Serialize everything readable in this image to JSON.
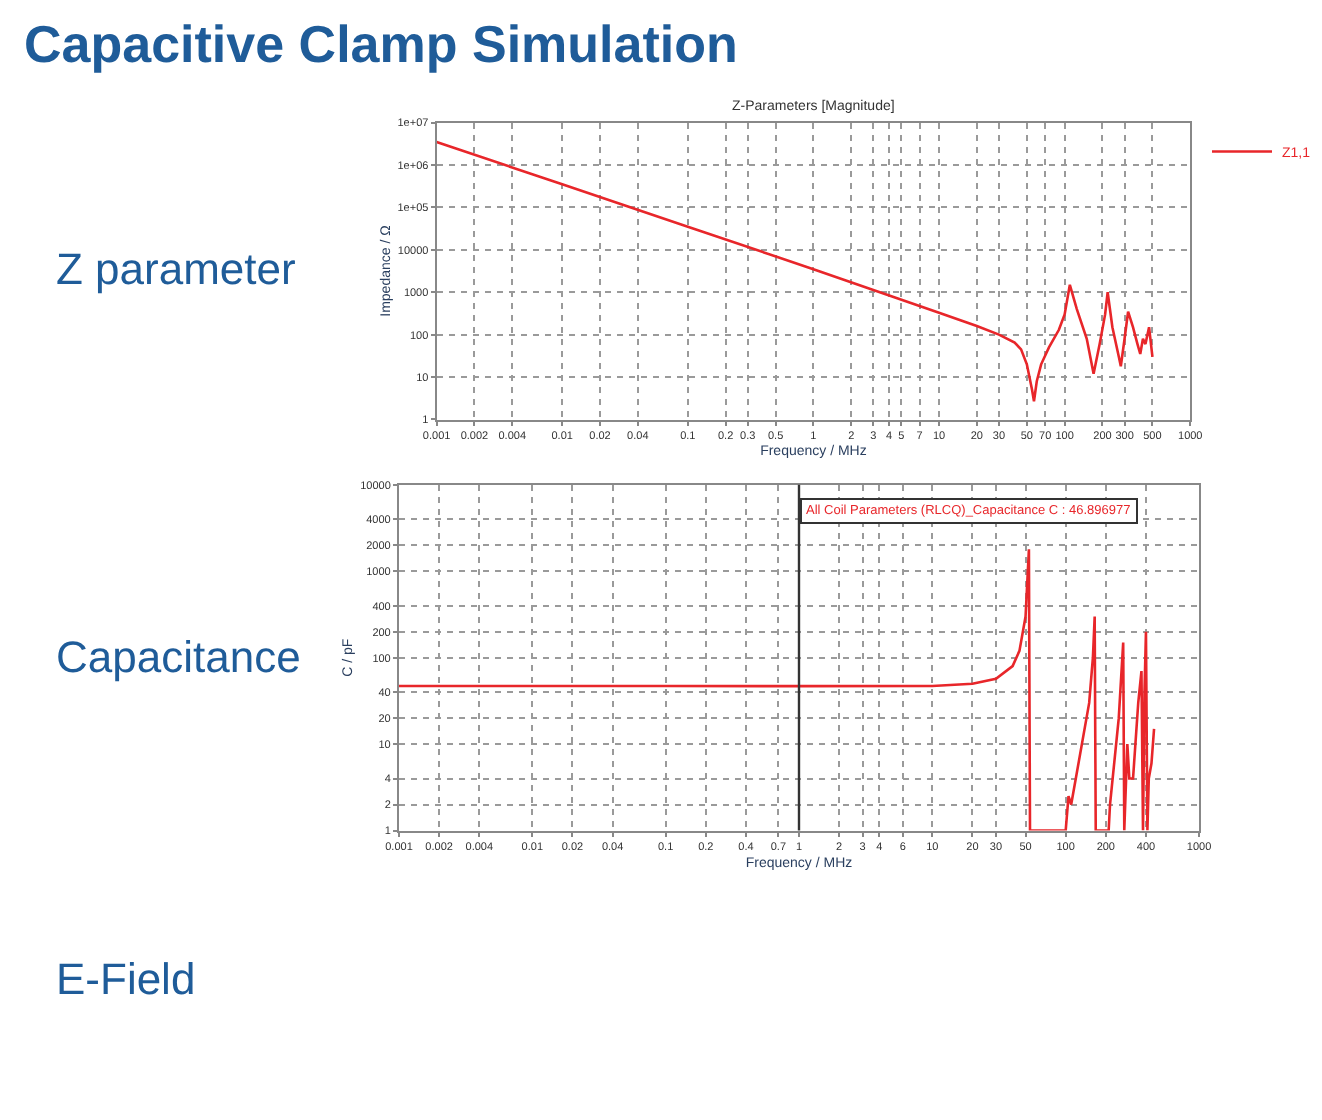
{
  "chart_data": [
    {
      "type": "other",
      "title": "Capacitive Clamp Simulation",
      "annotations": [
        "Z parameter",
        "Capacitance",
        "E-Field"
      ]
    },
    {
      "type": "line",
      "title": "Z-Parameters [Magnitude]",
      "xlabel": "Frequency / MHz",
      "ylabel": "Impedance / Ω",
      "log": "xy",
      "grid": true,
      "legend": "top right",
      "line_style": "solid",
      "xlim": [
        0.001,
        1000
      ],
      "ylim": [
        1,
        10000000
      ],
      "xticks": [
        0.001,
        0.002,
        0.004,
        0.01,
        0.02,
        0.04,
        0.1,
        0.2,
        0.3,
        0.5,
        1,
        2,
        3,
        4,
        5,
        7,
        10,
        20,
        30,
        50,
        70,
        100,
        200,
        300,
        500,
        1000
      ],
      "yticks": [
        1,
        10,
        100,
        1000,
        10000,
        {
          "value": 100000,
          "label": "1e+05"
        },
        {
          "value": 1000000,
          "label": "1e+06"
        },
        {
          "value": 10000000,
          "label": "1e+07"
        }
      ],
      "x": [
        0.001,
        0.01,
        0.1,
        1,
        10,
        20,
        30,
        40,
        45,
        50,
        55,
        57,
        60,
        65,
        75,
        90,
        100,
        110,
        125,
        150,
        170,
        190,
        210,
        220,
        240,
        270,
        280,
        300,
        320,
        350,
        380,
        400,
        420,
        440,
        470,
        500
      ],
      "series": [
        {
          "name": "Z1,1",
          "color": "#e8262a",
          "values": [
            3500000,
            350000,
            35000,
            3500,
            330,
            160,
            100,
            65,
            45,
            20,
            5,
            2.7,
            8,
            20,
            50,
            130,
            300,
            1500,
            400,
            80,
            12,
            60,
            300,
            1000,
            150,
            30,
            18,
            80,
            350,
            150,
            60,
            35,
            80,
            60,
            150,
            30
          ]
        }
      ]
    },
    {
      "type": "line",
      "xlabel": "Frequency / MHz",
      "ylabel": "C / pF",
      "log": "xy",
      "grid": true,
      "line_style": "solid",
      "xlim": [
        0.001,
        1000
      ],
      "ylim": [
        1,
        10000
      ],
      "xticks": [
        0.001,
        0.002,
        0.004,
        0.01,
        0.02,
        0.04,
        0.1,
        0.2,
        0.4,
        0.7,
        1,
        2,
        3,
        4,
        6,
        10,
        20,
        30,
        50,
        100,
        200,
        400,
        1000
      ],
      "yticks": [
        1,
        2,
        4,
        10,
        20,
        40,
        100,
        200,
        400,
        1000,
        2000,
        4000,
        10000
      ],
      "ref_lines": [
        {
          "axis": "x",
          "value": 1,
          "color": "#333333"
        }
      ],
      "annotations": [
        "All Coil Parameters (RLCQ)_Capacitance C : 46.896977"
      ],
      "x": [
        0.001,
        0.01,
        0.1,
        1,
        10,
        20,
        30,
        40,
        45,
        50,
        52,
        53,
        54,
        100,
        105,
        110,
        150,
        160,
        165,
        168,
        210,
        215,
        250,
        270,
        275,
        290,
        300,
        320,
        350,
        370,
        380,
        390,
        400,
        410,
        420,
        440,
        460
      ],
      "series": [
        {
          "color": "#e8262a",
          "values": [
            47,
            47,
            47,
            46.9,
            47,
            50,
            57,
            80,
            120,
            300,
            1000,
            1800,
            1,
            1,
            2.5,
            2,
            30,
            100,
            300,
            1,
            1,
            2,
            20,
            150,
            1,
            10,
            4,
            4,
            30,
            70,
            1,
            40,
            200,
            1,
            4,
            6,
            15
          ]
        }
      ]
    }
  ]
}
